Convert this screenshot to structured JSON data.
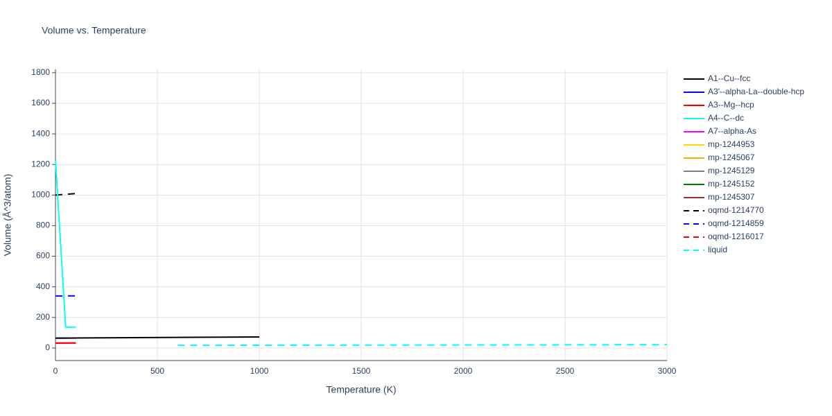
{
  "chart_data": {
    "type": "line",
    "title": "Volume vs. Temperature",
    "x_label": "Temperature (K)",
    "y_label": "Volume (Å^3/atom)",
    "xlim": [
      0,
      3000
    ],
    "ylim": [
      -82,
      1822
    ],
    "xticks": [
      0,
      500,
      1000,
      1500,
      2000,
      2500,
      3000
    ],
    "yticks": [
      0,
      200,
      400,
      600,
      800,
      1000,
      1200,
      1400,
      1600,
      1800
    ],
    "grid": true,
    "series": [
      {
        "name": "A1--Cu--fcc",
        "color": "#000000",
        "dash": false,
        "x": [
          0,
          1000
        ],
        "values": [
          65,
          72
        ]
      },
      {
        "name": "A3'--alpha-La--double-hcp",
        "color": "#0000ff",
        "dash": false,
        "x": [
          0,
          100
        ],
        "values": [
          64,
          65
        ]
      },
      {
        "name": "A3--Mg--hcp",
        "color": "#ff0000",
        "dash": false,
        "x": [
          0,
          100
        ],
        "values": [
          32,
          33
        ]
      },
      {
        "name": "A4--C--dc",
        "color": "#00ffff",
        "dash": false,
        "x": [
          0,
          50,
          100
        ],
        "values": [
          1230,
          136,
          136
        ]
      },
      {
        "name": "A7--alpha-As",
        "color": "#ff00ff",
        "dash": false,
        "x": [
          0,
          100
        ],
        "values": [
          32,
          33
        ]
      },
      {
        "name": "mp-1244953",
        "color": "#ffd700",
        "dash": false,
        "x": [
          0,
          100
        ],
        "values": [
          32,
          33
        ]
      },
      {
        "name": "mp-1245067",
        "color": "#ffa500",
        "dash": false,
        "x": [
          0,
          100
        ],
        "values": [
          32,
          33
        ]
      },
      {
        "name": "mp-1245129",
        "color": "#808080",
        "dash": false,
        "x": [
          0,
          100
        ],
        "values": [
          32,
          33
        ]
      },
      {
        "name": "mp-1245152",
        "color": "#008000",
        "dash": false,
        "x": [
          0,
          100
        ],
        "values": [
          32,
          33
        ]
      },
      {
        "name": "mp-1245307",
        "color": "#a52a2a",
        "dash": false,
        "x": [
          0,
          100
        ],
        "values": [
          32,
          33
        ]
      },
      {
        "name": "oqmd-1214770",
        "color": "#000000",
        "dash": true,
        "x": [
          0,
          100
        ],
        "values": [
          1000,
          1010
        ]
      },
      {
        "name": "oqmd-1214859",
        "color": "#0000ff",
        "dash": true,
        "x": [
          0,
          100
        ],
        "values": [
          340,
          341
        ]
      },
      {
        "name": "oqmd-1216017",
        "color": "#ff0000",
        "dash": true,
        "x": [
          0,
          100
        ],
        "values": [
          32,
          33
        ]
      },
      {
        "name": "liquid",
        "color": "#00ffff",
        "dash": true,
        "x": [
          600,
          3000
        ],
        "values": [
          17,
          22
        ]
      }
    ]
  }
}
